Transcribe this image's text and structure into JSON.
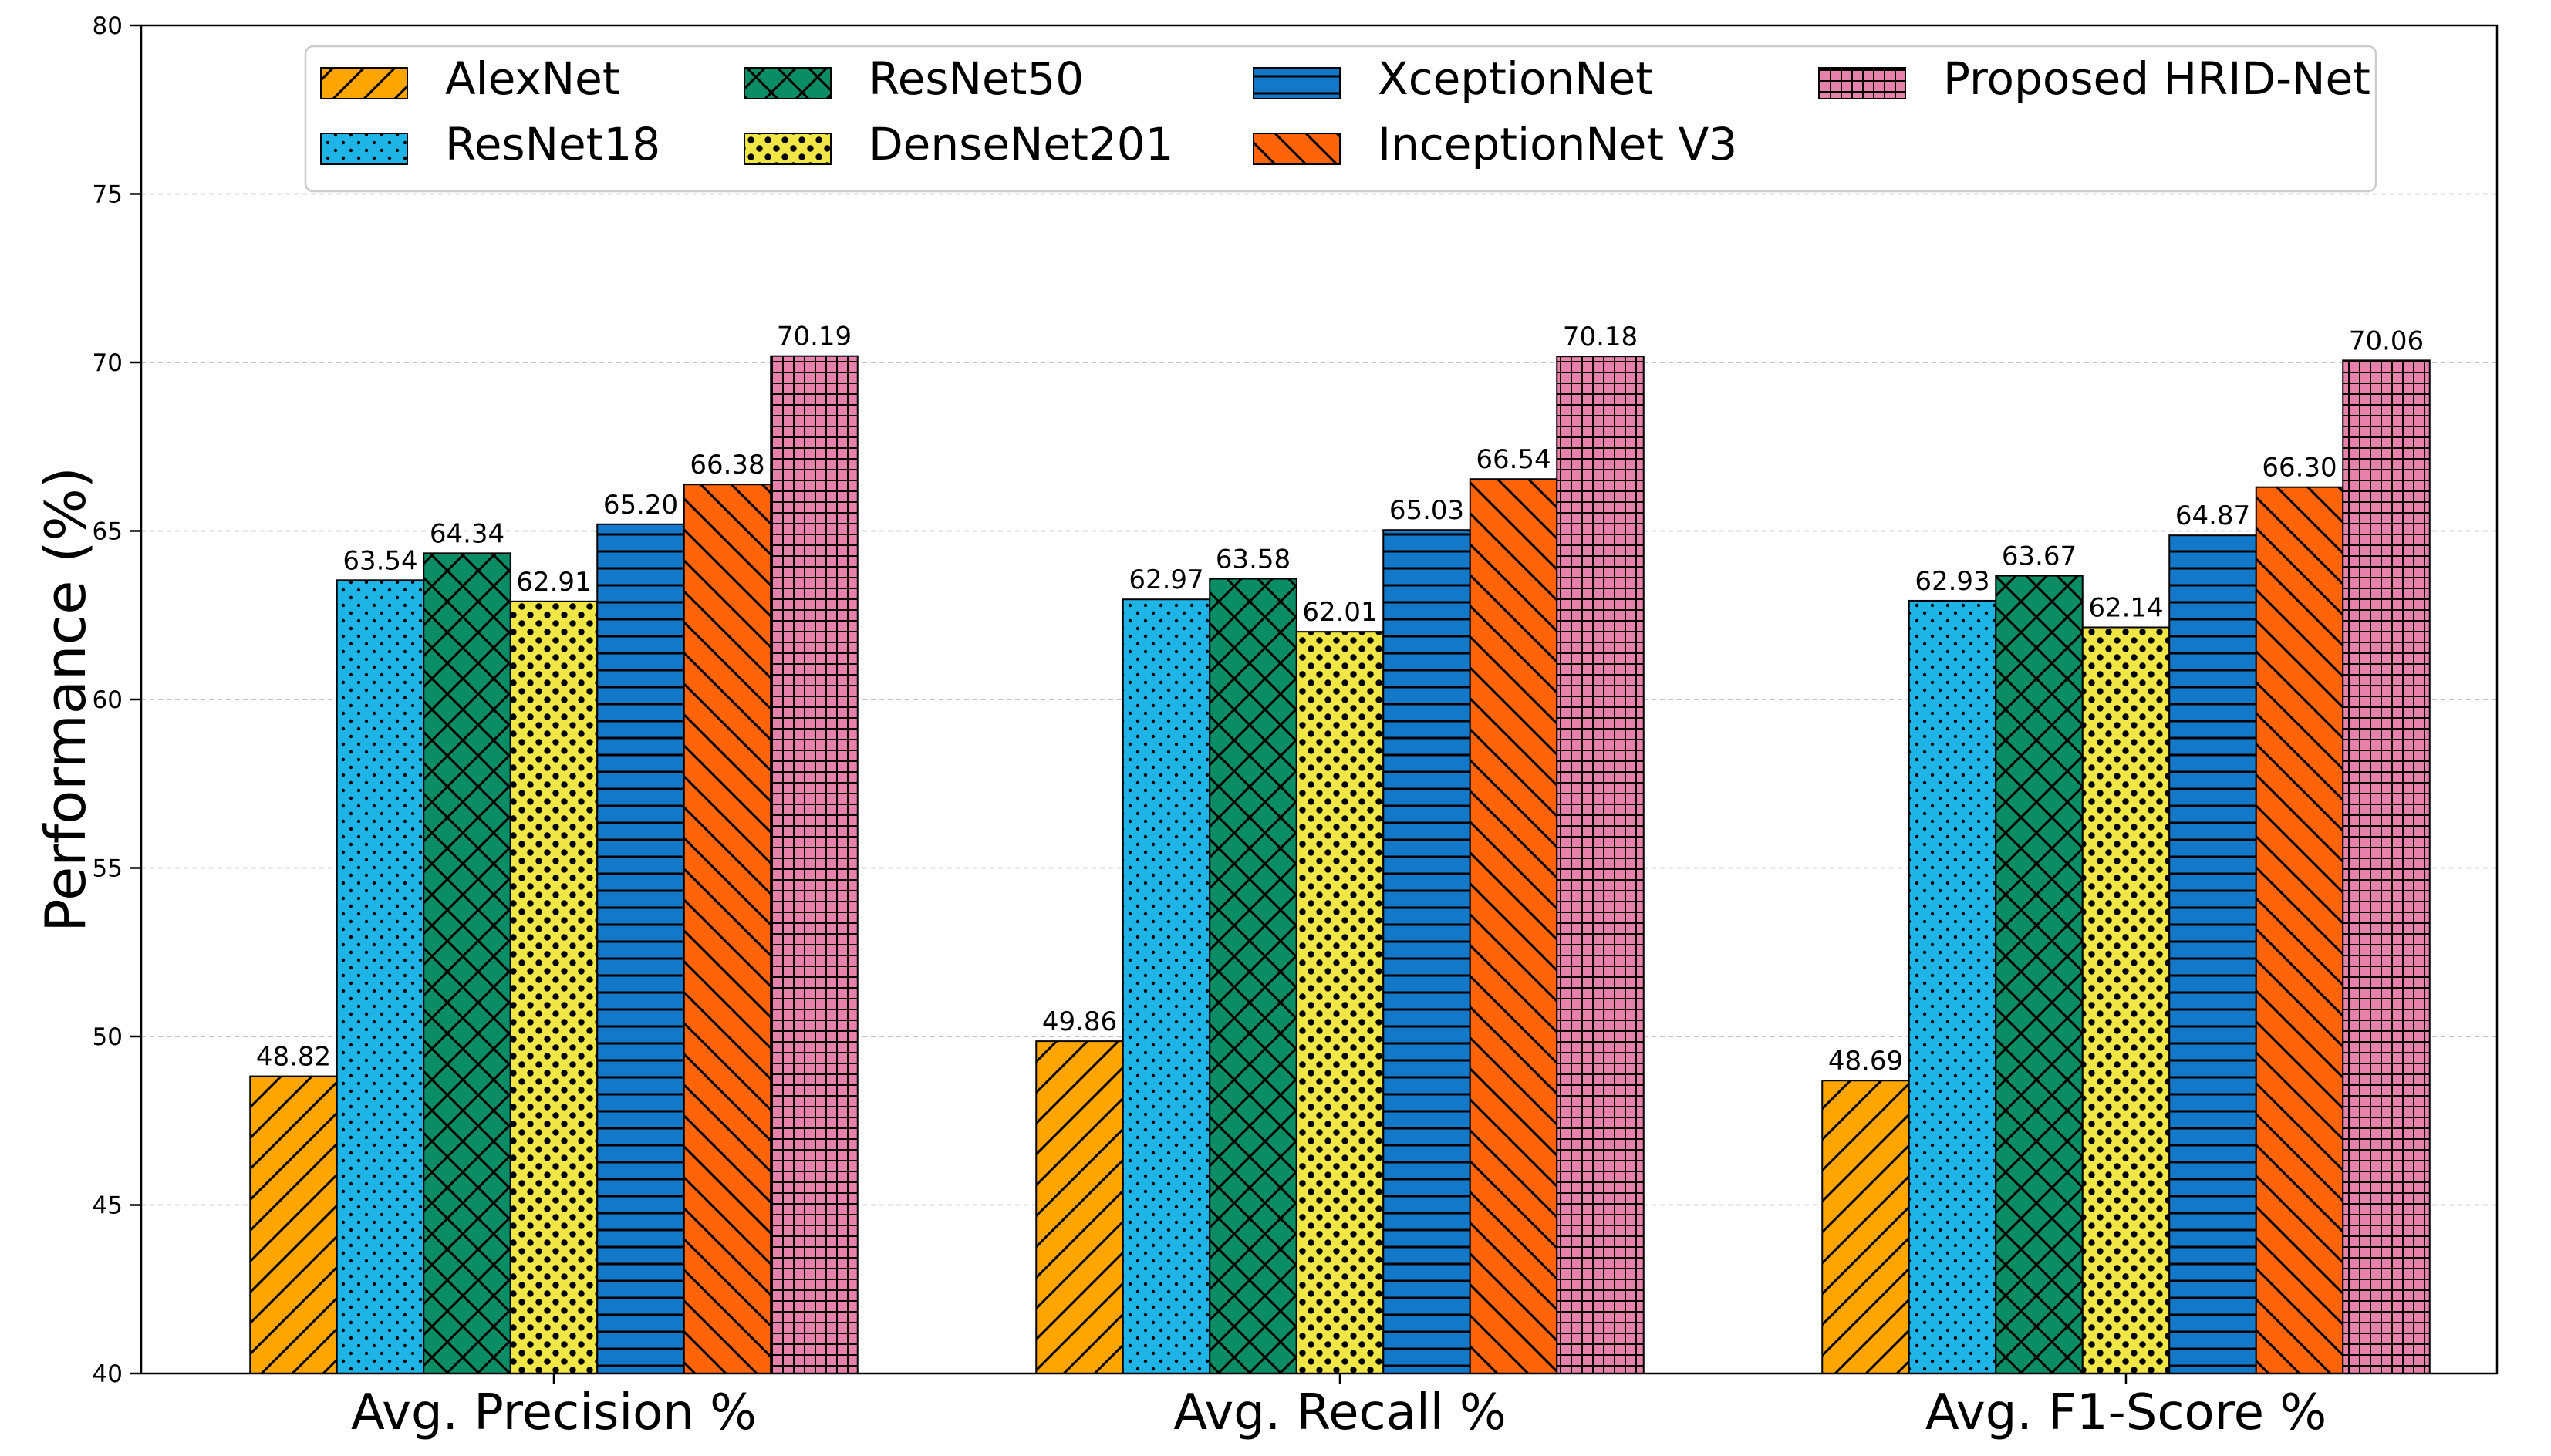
{
  "chart_data": {
    "type": "bar",
    "title": "",
    "xlabel": "",
    "ylabel": "Performance (%)",
    "ylim": [
      40,
      80
    ],
    "yticks": [
      "40",
      "45",
      "50",
      "55",
      "60",
      "65",
      "70",
      "75",
      "80"
    ],
    "grid": "y-dashed",
    "legend_position": "top-center",
    "categories": [
      "Avg. Precision %",
      "Avg. Recall %",
      "Avg. F1-Score %"
    ],
    "series": [
      {
        "name": "AlexNet",
        "color": "#ffa500",
        "pattern": "diagonal-hatch",
        "values": [
          48.82,
          49.86,
          48.69
        ],
        "labels": [
          "48.82",
          "49.86",
          "48.69"
        ]
      },
      {
        "name": "ResNet18",
        "color": "#1eb4e6",
        "pattern": "dots",
        "values": [
          63.54,
          62.97,
          62.93
        ],
        "labels": [
          "63.54",
          "62.97",
          "62.93"
        ]
      },
      {
        "name": "ResNet50",
        "color": "#0a8c64",
        "pattern": "cross-hatch",
        "values": [
          64.34,
          63.58,
          63.67
        ],
        "labels": [
          "64.34",
          "63.58",
          "63.67"
        ]
      },
      {
        "name": "DenseNet201",
        "color": "#f0e646",
        "pattern": "large-dots",
        "values": [
          62.91,
          62.01,
          62.14
        ],
        "labels": [
          "62.91",
          "62.01",
          "62.14"
        ]
      },
      {
        "name": "XceptionNet",
        "color": "#1478c8",
        "pattern": "horizontal-lines",
        "values": [
          65.2,
          65.03,
          64.87
        ],
        "labels": [
          "65.20",
          "65.03",
          "64.87"
        ]
      },
      {
        "name": "InceptionNet V3",
        "color": "#ff640a",
        "pattern": "back-diagonal-hatch",
        "values": [
          66.38,
          66.54,
          66.3
        ],
        "labels": [
          "66.38",
          "66.54",
          "66.30"
        ]
      },
      {
        "name": "Proposed HRID-Net",
        "color": "#e682aa",
        "pattern": "grid",
        "values": [
          70.19,
          70.18,
          70.06
        ],
        "labels": [
          "70.19",
          "70.18",
          "70.06"
        ]
      }
    ]
  }
}
